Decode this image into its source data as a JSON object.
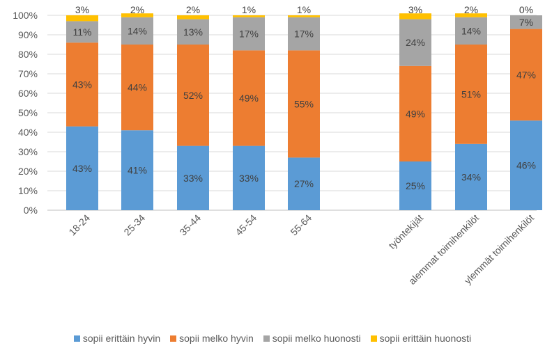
{
  "chart_data": {
    "type": "bar",
    "stacked": true,
    "categories": [
      "18-24",
      "25-34",
      "35-44",
      "45-54",
      "55-64",
      "työntekijät",
      "alemmat toimihenkilöt",
      "ylemmät toimihenkilöt"
    ],
    "series": [
      {
        "name": "sopii erittäin hyvin",
        "color": "#5B9BD5",
        "values": [
          43,
          41,
          33,
          33,
          27,
          25,
          34,
          46
        ],
        "labels": [
          "43%",
          "41%",
          "33%",
          "33%",
          "27%",
          "25%",
          "34%",
          "46%"
        ]
      },
      {
        "name": "sopii melko hyvin",
        "color": "#ED7D31",
        "values": [
          43,
          44,
          52,
          49,
          55,
          49,
          51,
          47
        ],
        "labels": [
          "43%",
          "44%",
          "52%",
          "49%",
          "55%",
          "49%",
          "51%",
          "47%"
        ]
      },
      {
        "name": "sopii melko huonosti",
        "color": "#A5A5A5",
        "values": [
          11,
          14,
          13,
          17,
          17,
          24,
          14,
          7
        ],
        "labels": [
          "11%",
          "14%",
          "13%",
          "17%",
          "17%",
          "24%",
          "14%",
          "7%"
        ]
      },
      {
        "name": "sopii erittäin huonosti",
        "color": "#FFC000",
        "values": [
          3,
          2,
          2,
          1,
          1,
          3,
          2,
          0
        ],
        "labels": [
          "3%",
          "2%",
          "2%",
          "1%",
          "1%",
          "3%",
          "2%",
          "0%"
        ]
      }
    ],
    "ylim": [
      0,
      100
    ],
    "yticks": [
      "0%",
      "10%",
      "20%",
      "30%",
      "40%",
      "50%",
      "60%",
      "70%",
      "80%",
      "90%",
      "100%"
    ],
    "grid": true,
    "legend_position": "bottom"
  }
}
